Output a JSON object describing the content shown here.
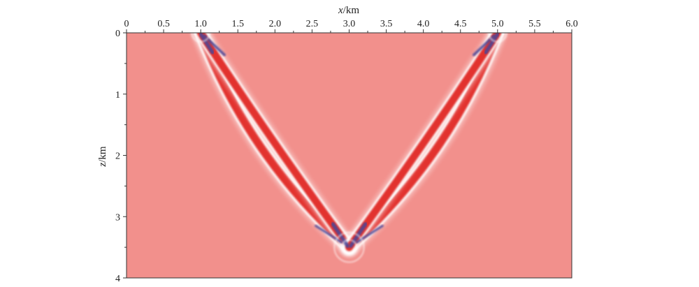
{
  "chart_data": {
    "type": "heatmap",
    "title": "",
    "xlabel": {
      "var": "x",
      "unit": "/km"
    },
    "ylabel": {
      "var": "z",
      "unit": "/km"
    },
    "x_axis_position": "top",
    "y_axis_inverted": true,
    "xlim": [
      0,
      6.0
    ],
    "ylim": [
      0,
      4
    ],
    "xticks": [
      0,
      0.5,
      1.0,
      1.5,
      2.0,
      2.5,
      3.0,
      3.5,
      4.0,
      4.5,
      5.0,
      5.5,
      6.0
    ],
    "xtick_labels": [
      "0",
      "0.5",
      "1.0",
      "1.5",
      "2.0",
      "2.5",
      "3.0",
      "3.5",
      "4.0",
      "4.5",
      "5.0",
      "5.5",
      "6.0"
    ],
    "yticks": [
      0,
      1,
      2,
      3,
      4
    ],
    "ytick_labels": [
      "0",
      "1",
      "2",
      "3",
      "4"
    ],
    "grid": false,
    "colors": {
      "background": "#f2908c",
      "positive": "#e2322f",
      "zero_crossing": "#ffffff",
      "negative": "#4a4596"
    },
    "features": [
      {
        "name": "left-wavefront-outer",
        "from": [
          1.0,
          0.0
        ],
        "to": [
          3.0,
          3.5
        ],
        "bulge": 0.42,
        "width": 0.13
      },
      {
        "name": "left-wavefront-inner",
        "from": [
          1.0,
          0.0
        ],
        "to": [
          3.0,
          3.5
        ],
        "bulge": 0.05,
        "width": 0.12
      },
      {
        "name": "right-wavefront-outer",
        "from": [
          5.0,
          0.0
        ],
        "to": [
          3.0,
          3.5
        ],
        "bulge": -0.42,
        "width": 0.13
      },
      {
        "name": "right-wavefront-inner",
        "from": [
          5.0,
          0.0
        ],
        "to": [
          3.0,
          3.5
        ],
        "bulge": -0.05,
        "width": 0.12
      }
    ],
    "sources": [
      [
        1.0,
        0.0
      ],
      [
        5.0,
        0.0
      ]
    ],
    "focus": [
      3.0,
      3.5
    ]
  }
}
